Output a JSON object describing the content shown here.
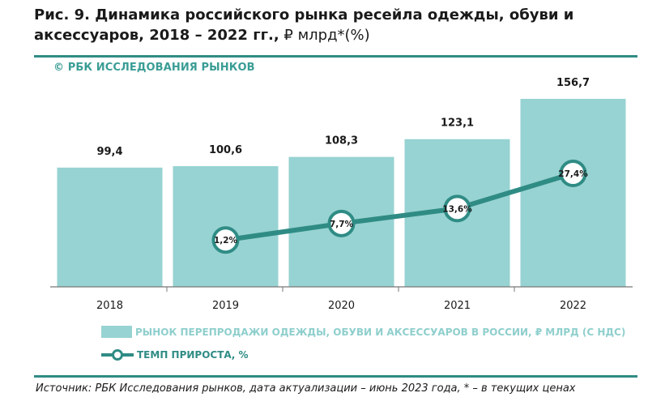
{
  "header": {
    "title_bold": "Рис. 9. Динамика российского рынка ресейла одежды, обуви и аксессуаров, 2018 – 2022 гг.,",
    "title_normal": " ₽ млрд*(%)"
  },
  "copyright": "© РБК ИССЛЕДОВАНИЯ РЫНКОВ",
  "legend": {
    "bar_label": "РЫНОК ПЕРЕПРОДАЖИ ОДЕЖДЫ, ОБУВИ И АКСЕССУАРОВ В РОССИИ, ₽ МЛРД (С НДС)",
    "line_label": "ТЕМП ПРИРОСТА, %"
  },
  "source": "Источник: РБК Исследования рынков, дата актуализации – июнь 2023 года, * – в текущих ценах",
  "colors": {
    "bar": "#97d3d2",
    "line": "#2f8c85",
    "rule": "#2f8c85",
    "copyright": "#3a9d95"
  },
  "chart_data": {
    "type": "bar",
    "categories": [
      "2018",
      "2019",
      "2020",
      "2021",
      "2022"
    ],
    "series": [
      {
        "name": "РЫНОК ПЕРЕПРОДАЖИ ОДЕЖДЫ, ОБУВИ И АКСЕССУАРОВ В РОССИИ, ₽ МЛРД (С НДС)",
        "type": "bar",
        "values": [
          99.4,
          100.6,
          108.3,
          123.1,
          156.7
        ],
        "labels": [
          "99,4",
          "100,6",
          "108,3",
          "123,1",
          "156,7"
        ]
      },
      {
        "name": "ТЕМП ПРИРОСТА, %",
        "type": "line",
        "values": [
          null,
          1.2,
          7.7,
          13.6,
          27.4
        ],
        "labels": [
          "",
          "1,2%",
          "7,7%",
          "13,6%",
          "27,4%"
        ]
      }
    ],
    "ylim": [
      0,
      160
    ],
    "grid": false,
    "legend_position": "bottom"
  }
}
